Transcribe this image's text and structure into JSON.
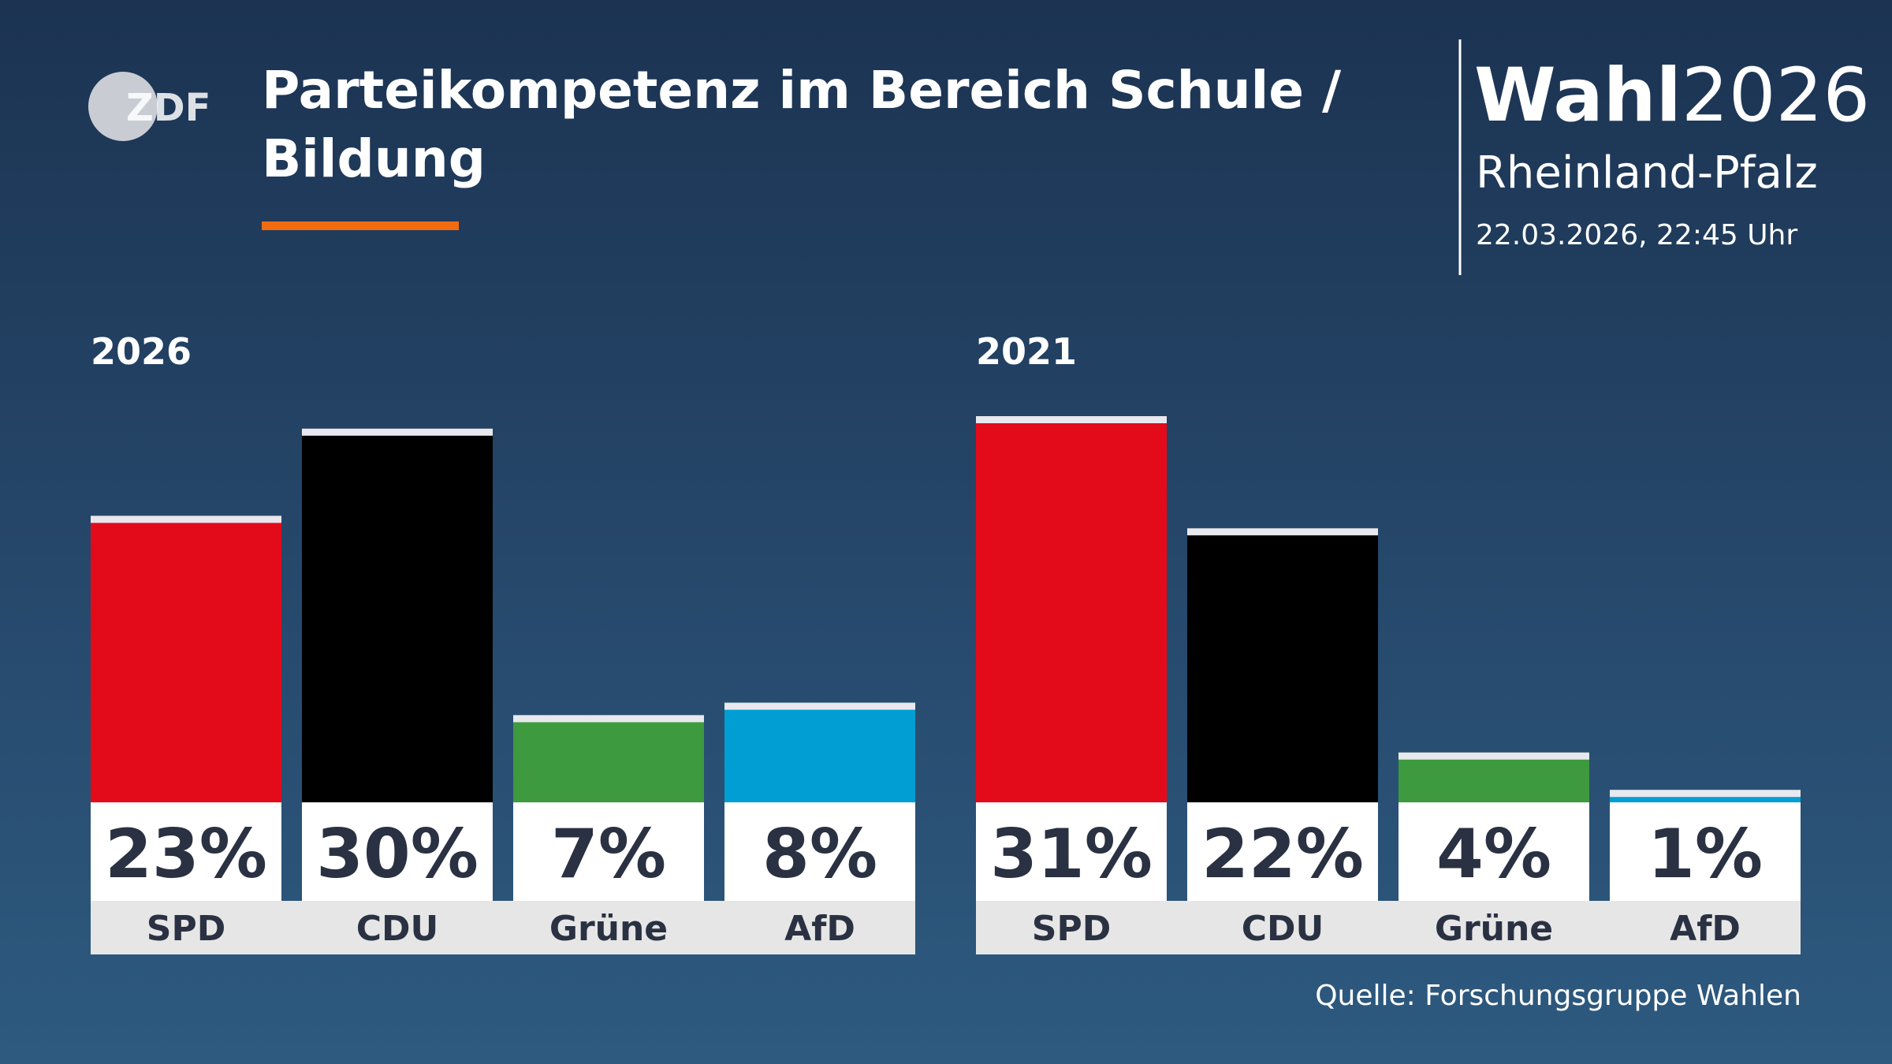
{
  "header": {
    "logo": "ZDF",
    "title": [
      "Parteikompetenz im Bereich Schule /",
      "Bildung"
    ],
    "brand": {
      "bold": "Wahl",
      "light": "2026"
    },
    "region": "Rheinland-Pfalz",
    "date": "22.03.2026, 22:45 Uhr"
  },
  "chart_data": [
    {
      "type": "bar",
      "title": "2026",
      "categories": [
        "SPD",
        "CDU",
        "Grüne",
        "AfD"
      ],
      "values": [
        23,
        30,
        7,
        8
      ],
      "value_labels": [
        "23%",
        "30%",
        "7%",
        "8%"
      ],
      "colors": [
        "#e30b1a",
        "#000000",
        "#3e9a3e",
        "#009ed2"
      ]
    },
    {
      "type": "bar",
      "title": "2021",
      "categories": [
        "SPD",
        "CDU",
        "Grüne",
        "AfD"
      ],
      "values": [
        31,
        22,
        4,
        1
      ],
      "value_labels": [
        "31%",
        "22%",
        "4%",
        "1%"
      ],
      "colors": [
        "#e30b1a",
        "#000000",
        "#3e9a3e",
        "#009ed2"
      ]
    }
  ],
  "source": "Quelle: Forschungsgruppe Wahlen"
}
